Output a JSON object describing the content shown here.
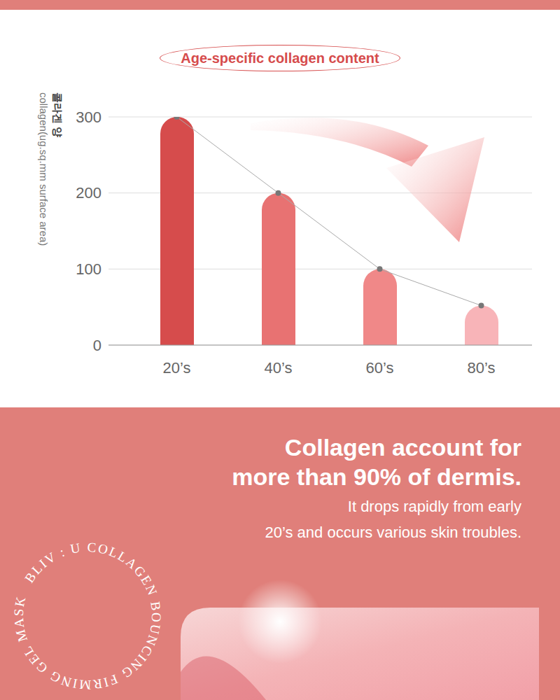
{
  "chart_data": {
    "type": "bar",
    "title": "Age-specific collagen content",
    "ylabel": [
      "콜라겐 양",
      "collagen(ug.sq.mm surface area)"
    ],
    "categories": [
      "20’s",
      "40’s",
      "60’s",
      "80’s"
    ],
    "values": [
      300,
      200,
      100,
      52
    ],
    "colors": [
      "#d64c4c",
      "#e87272",
      "#f08888",
      "#f8b4b8"
    ],
    "ylim": [
      0,
      300
    ],
    "yticks": [
      0,
      100,
      200,
      300
    ],
    "grid": true,
    "marker": "circle",
    "line_style": "solid"
  },
  "headline": [
    "Collagen account for",
    "more than 90% of dermis."
  ],
  "subtext": [
    "It drops rapidly from early",
    "20’s and occurs various skin troubles."
  ],
  "circular_text": "BLIV : U COLLAGEN BOUNCING FIRMING GEL MASK"
}
